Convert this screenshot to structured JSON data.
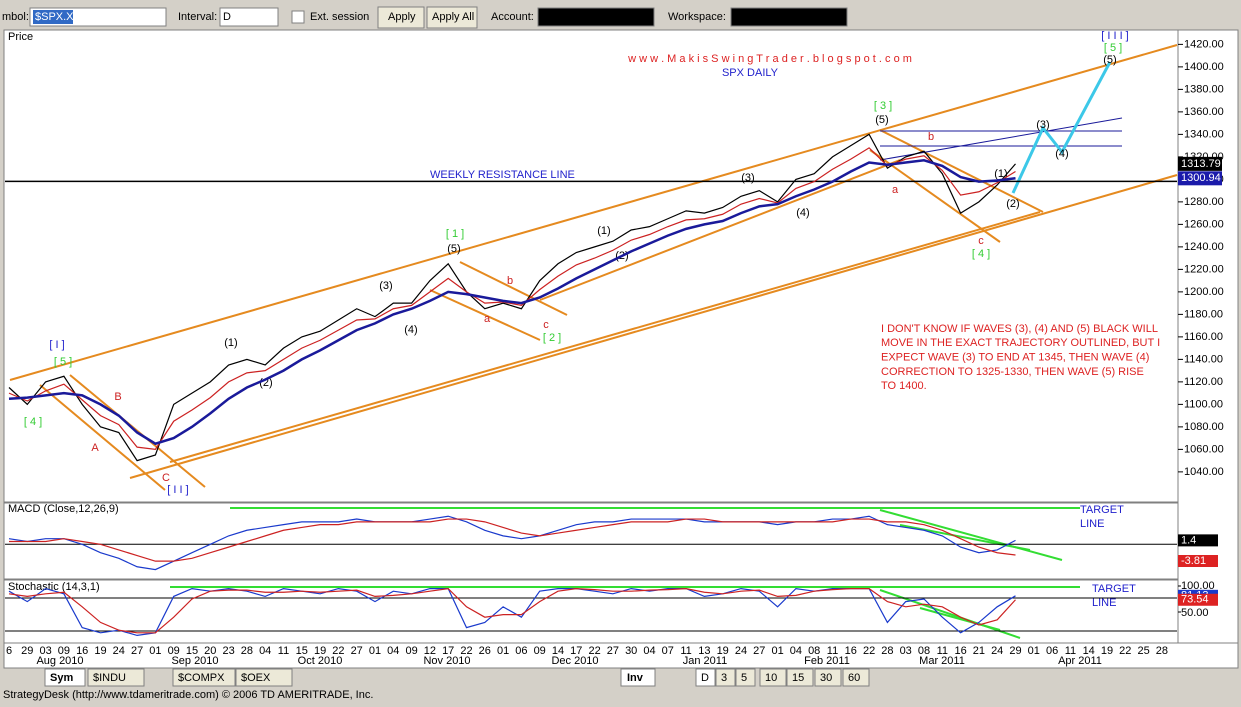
{
  "toolbar": {
    "symbol_label": "mbol:",
    "symbol": "$SPX.X",
    "interval_label": "Interval:",
    "interval": "D",
    "ext_session": "Ext. session",
    "apply": "Apply",
    "apply_all": "Apply All",
    "account_label": "Account:",
    "workspace_label": "Workspace:"
  },
  "chart_data": {
    "type": "line",
    "panel_label": "Price",
    "title": "w w w . M a k i s S w i n g T r a d e r . b l o g s p o t . c o m",
    "subtitle": "SPX DAILY",
    "resistance_label": "WEEKLY RESISTANCE LINE",
    "note": [
      "I DON'T KNOW IF WAVES (3), (4) AND (5) BLACK WILL",
      "MOVE IN THE EXACT TRAJECTORY OUTLINED, BUT I",
      "EXPECT WAVE (3) TO END AT 1345, THEN WAVE (4)",
      "CORRECTION TO 1325-1330, THEN WAVE (5) RISE",
      "TO 1400."
    ],
    "wave_labels": [
      "[ I ]",
      "[ 5 ]",
      "[ 4 ]",
      "B",
      "A",
      "C",
      "[ I I ]",
      "(1)",
      "(2)",
      "(3)",
      "(4)",
      "[ 1 ]",
      "(5)",
      "b",
      "a",
      "c",
      "[ 2 ]",
      "(1)",
      "(2)",
      "(3)",
      "(4)",
      "[ 3 ]",
      "(5)",
      "b",
      "a",
      "c",
      "[ 4 ]",
      "(1)",
      "(2)",
      "(3)",
      "(4)",
      "[ I I I ]",
      "[ 5 ]",
      "(5)"
    ],
    "categories": [
      "6",
      "29",
      "03",
      "09",
      "16",
      "19",
      "24",
      "27",
      "01",
      "09",
      "15",
      "20",
      "23",
      "28",
      "04",
      "11",
      "15",
      "19",
      "22",
      "27",
      "01",
      "04",
      "09",
      "12",
      "17",
      "22",
      "26",
      "01",
      "06",
      "09",
      "14",
      "17",
      "22",
      "27",
      "30",
      "04",
      "07",
      "11",
      "13",
      "19",
      "24",
      "27",
      "01",
      "04",
      "08",
      "11",
      "16",
      "22",
      "28",
      "03",
      "08",
      "11",
      "16",
      "21",
      "24",
      "29",
      "01",
      "06",
      "11",
      "14",
      "19",
      "22",
      "25",
      "28"
    ],
    "months": [
      "Aug 2010",
      "Sep 2010",
      "Oct 2010",
      "Nov 2010",
      "Dec 2010",
      "Jan 2011",
      "Feb 2011",
      "Mar 2011",
      "Apr 2011"
    ],
    "ylim": [
      1015,
      1431
    ],
    "yticks": [
      {
        "value": 1040,
        "label": "1040.00"
      },
      {
        "value": 1060,
        "label": "1060.00"
      },
      {
        "value": 1080,
        "label": "1080.00"
      },
      {
        "value": 1100,
        "label": "1100.00"
      },
      {
        "value": 1120,
        "label": "1120.00"
      },
      {
        "value": 1140,
        "label": "1140.00"
      },
      {
        "value": 1160,
        "label": "1160.00"
      },
      {
        "value": 1180,
        "label": "1180.00"
      },
      {
        "value": 1200,
        "label": "1200.00"
      },
      {
        "value": 1220,
        "label": "1220.00"
      },
      {
        "value": 1240,
        "label": "1240.00"
      },
      {
        "value": 1260,
        "label": "1260.00"
      },
      {
        "value": 1280,
        "label": "1280.00"
      },
      {
        "value": 1300,
        "label": "1300.00"
      },
      {
        "value": 1320,
        "label": "1320.00"
      },
      {
        "value": 1340,
        "label": "1340.00"
      },
      {
        "value": 1360,
        "label": "1360.00"
      },
      {
        "value": 1380,
        "label": "1380.00"
      },
      {
        "value": 1400,
        "label": "1400.00"
      },
      {
        "value": 1420,
        "label": "1420.00"
      }
    ],
    "flags": [
      1313.79,
      1300.94
    ],
    "series": [
      {
        "color": "#000000",
        "values": [
          1115,
          1100,
          1120,
          1125,
          1100,
          1080,
          1075,
          1050,
          1055,
          1100,
          1110,
          1120,
          1135,
          1140,
          1135,
          1150,
          1160,
          1165,
          1175,
          1185,
          1178,
          1190,
          1190,
          1210,
          1225,
          1200,
          1185,
          1190,
          1185,
          1210,
          1225,
          1235,
          1240,
          1245,
          1255,
          1258,
          1265,
          1272,
          1270,
          1275,
          1285,
          1290,
          1280,
          1300,
          1305,
          1320,
          1330,
          1340,
          1310,
          1320,
          1325,
          1305,
          1270,
          1280,
          1295,
          1313.79,
          null,
          null,
          null,
          null,
          null,
          null,
          null,
          null
        ]
      },
      {
        "color": "#cc2222",
        "values": [
          1110,
          1103,
          1112,
          1118,
          1104,
          1090,
          1082,
          1062,
          1060,
          1085,
          1095,
          1106,
          1120,
          1128,
          1130,
          1140,
          1150,
          1157,
          1166,
          1175,
          1176,
          1185,
          1188,
          1200,
          1212,
          1200,
          1190,
          1191,
          1188,
          1202,
          1214,
          1224,
          1230,
          1237,
          1246,
          1251,
          1258,
          1264,
          1265,
          1269,
          1278,
          1283,
          1279,
          1292,
          1298,
          1309,
          1318,
          1328,
          1312,
          1318,
          1321,
          1308,
          1286,
          1289,
          1297,
          1307,
          null,
          null,
          null,
          null,
          null,
          null,
          null,
          null
        ]
      },
      {
        "color": "#1a1a9a",
        "values": [
          1105,
          1106,
          1108,
          1110,
          1108,
          1100,
          1090,
          1075,
          1065,
          1070,
          1080,
          1092,
          1105,
          1115,
          1122,
          1130,
          1140,
          1148,
          1157,
          1166,
          1172,
          1180,
          1185,
          1192,
          1200,
          1198,
          1195,
          1192,
          1190,
          1195,
          1203,
          1212,
          1220,
          1228,
          1236,
          1243,
          1250,
          1256,
          1260,
          1263,
          1270,
          1276,
          1278,
          1285,
          1291,
          1298,
          1307,
          1315,
          1313,
          1315,
          1317,
          1312,
          1302,
          1298,
          1299,
          1301,
          null,
          null,
          null,
          null,
          null,
          null,
          null,
          null
        ]
      }
    ]
  },
  "macd": {
    "label": "MACD (Close,12,26,9)",
    "target": [
      "TARGET",
      "LINE"
    ],
    "ylim": [
      -12,
      14
    ],
    "flags": [
      1.4,
      -3.81
    ],
    "series": [
      {
        "color": "#1a3acc",
        "values": [
          2,
          1,
          2,
          2,
          0,
          -3,
          -5,
          -8,
          -9,
          -6,
          -3,
          0,
          3,
          5,
          6,
          7,
          8,
          8,
          8,
          9,
          8,
          8,
          8,
          9,
          10,
          8,
          5,
          3,
          2,
          3,
          5,
          7,
          8,
          8,
          9,
          9,
          9,
          9,
          8,
          8,
          8,
          8,
          7,
          8,
          8,
          9,
          9,
          10,
          7,
          6,
          5,
          3,
          -1,
          -3,
          -2,
          1.4,
          null,
          null,
          null,
          null,
          null,
          null,
          null,
          null
        ]
      },
      {
        "color": "#cc2222",
        "values": [
          1,
          1,
          1,
          2,
          1,
          0,
          -2,
          -4,
          -6,
          -6,
          -5,
          -3,
          -1,
          1,
          3,
          5,
          6,
          7,
          7,
          8,
          8,
          8,
          8,
          8,
          9,
          9,
          8,
          6,
          4,
          3,
          4,
          5,
          6,
          7,
          8,
          8,
          8,
          9,
          9,
          8,
          8,
          8,
          8,
          8,
          8,
          8,
          9,
          9,
          8,
          8,
          7,
          5,
          2,
          -1,
          -3,
          -3.81,
          null,
          null,
          null,
          null,
          null,
          null,
          null,
          null
        ]
      }
    ]
  },
  "stochastic": {
    "label": "Stochastic (14,3,1)",
    "target": [
      "TARGET",
      "LINE"
    ],
    "ylim": [
      0,
      100
    ],
    "yticks": [
      {
        "value": 100,
        "label": "100.00"
      },
      {
        "value": 50,
        "label": "50.00"
      }
    ],
    "flags": [
      81.13,
      73.54
    ],
    "series": [
      {
        "color": "#1a3acc",
        "values": [
          90,
          70,
          95,
          85,
          20,
          10,
          15,
          5,
          10,
          80,
          95,
          90,
          95,
          90,
          80,
          95,
          90,
          85,
          95,
          90,
          70,
          90,
          85,
          95,
          95,
          20,
          30,
          60,
          40,
          90,
          95,
          95,
          90,
          85,
          95,
          90,
          95,
          95,
          80,
          85,
          95,
          90,
          60,
          95,
          90,
          95,
          95,
          95,
          30,
          70,
          75,
          40,
          10,
          30,
          60,
          81.13,
          null,
          null,
          null,
          null,
          null,
          null,
          null,
          null
        ]
      },
      {
        "color": "#cc2222",
        "values": [
          85,
          80,
          85,
          88,
          60,
          30,
          15,
          10,
          10,
          40,
          75,
          90,
          92,
          92,
          88,
          88,
          90,
          88,
          90,
          92,
          80,
          82,
          85,
          90,
          95,
          60,
          40,
          45,
          45,
          70,
          90,
          95,
          93,
          90,
          90,
          92,
          93,
          95,
          88,
          85,
          90,
          92,
          80,
          82,
          90,
          93,
          95,
          95,
          70,
          60,
          65,
          60,
          40,
          25,
          35,
          73.54,
          null,
          null,
          null,
          null,
          null,
          null,
          null,
          null
        ]
      }
    ]
  },
  "tabs": {
    "sym": "Sym",
    "symbols": [
      "$INDU",
      "$COMPX",
      "$OEX"
    ],
    "inv": "Inv",
    "intervals": [
      "D",
      "3",
      "5",
      "10",
      "15",
      "30",
      "60"
    ]
  },
  "status": "StrategyDesk (http://www.tdameritrade.com) © 2006 TD AMERITRADE, Inc."
}
